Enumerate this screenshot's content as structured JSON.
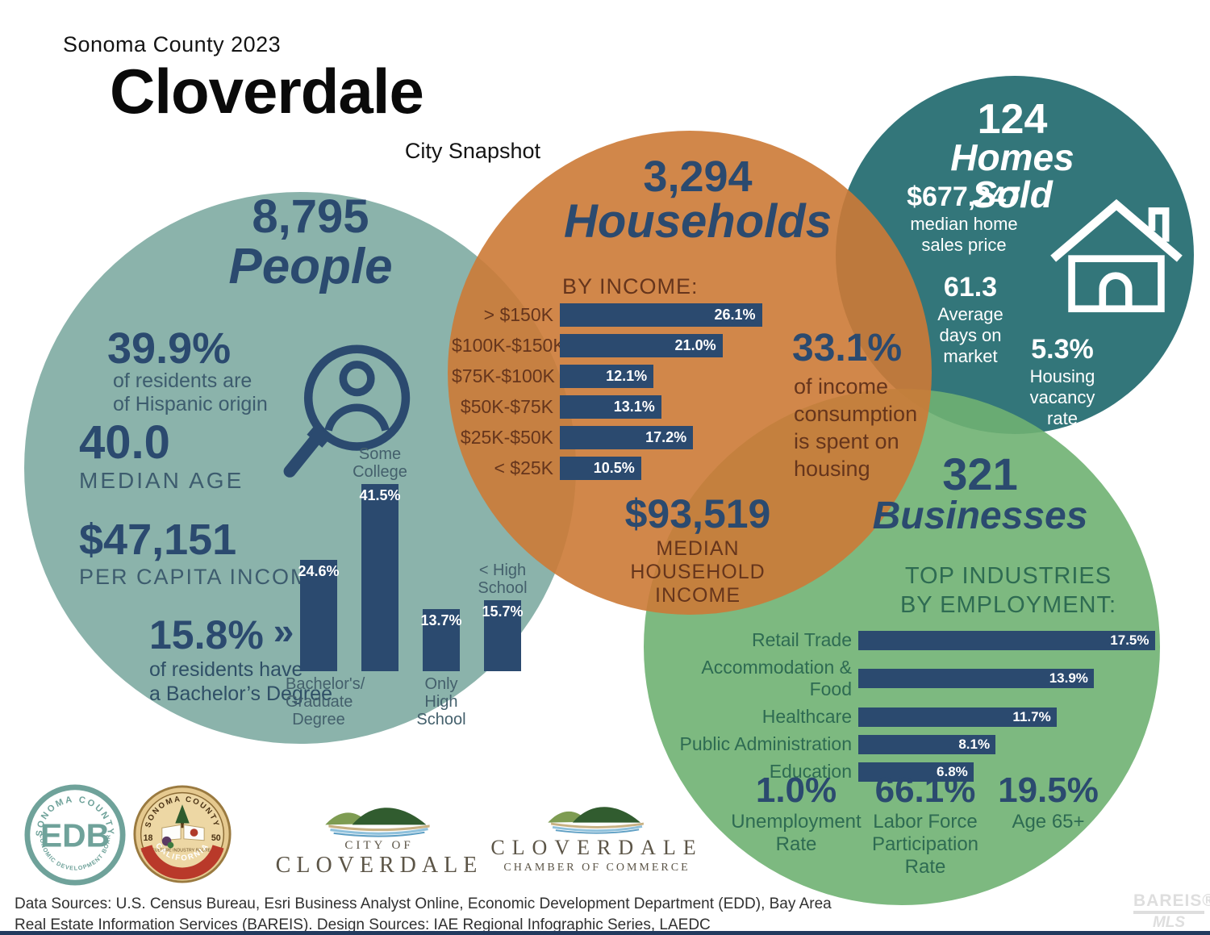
{
  "header": {
    "kicker": "Sonoma County 2023",
    "title": "Cloverdale",
    "subtitle": "City Snapshot"
  },
  "colors": {
    "people_circle": "#8BB3AB",
    "households_circle": "#CC7A36",
    "homes_circle": "#33767A",
    "businesses_circle": "#6FB172",
    "navy": "#2B4A6F",
    "rust_text": "#66351C",
    "green_text": "#2E6B52"
  },
  "people": {
    "count": "8,795",
    "label": "People",
    "hispanic_pct": "39.9%",
    "hispanic_desc": "of residents are\nof Hispanic origin",
    "median_age": "40.0",
    "median_age_label": "MEDIAN AGE",
    "per_capita": "$47,151",
    "per_capita_label": "PER CAPITA INCOME",
    "bachelor_pct": "15.8%",
    "bachelor_arrow": "»",
    "bachelor_desc": "of residents have\na Bachelor’s Degree"
  },
  "households": {
    "count": "3,294",
    "label": "Households",
    "by_income_title": "BY INCOME:",
    "housing_pct": "33.1%",
    "housing_desc": "of income\nconsumption\nis spent on\nhousing",
    "median_income": "$93,519",
    "median_income_label": "MEDIAN\nHOUSEHOLD\nINCOME"
  },
  "homes": {
    "count": "124",
    "label": "Homes Sold",
    "price": "$677,247",
    "price_label": "median home\nsales price",
    "days": "61.3",
    "days_label": "Average\ndays on\nmarket",
    "vacancy": "5.3%",
    "vacancy_label": "Housing\nvacancy\nrate"
  },
  "businesses": {
    "count": "321",
    "label": "Businesses",
    "industries_title": "TOP INDUSTRIES\nBY EMPLOYMENT:",
    "unemployment": "1.0%",
    "unemployment_label": "Unemployment\nRate",
    "labor": "66.1%",
    "labor_label": "Labor Force\nParticipation\nRate",
    "age65": "19.5%",
    "age65_label": "Age 65+"
  },
  "chart_data": [
    {
      "id": "education",
      "type": "bar",
      "orientation": "vertical",
      "context": "educational attainment of residents",
      "categories": [
        "Bachelor's/ Graduate Degree",
        "Some College",
        "Only High School",
        "< High School"
      ],
      "values": [
        24.6,
        41.5,
        13.7,
        15.7
      ],
      "label_position": [
        "below",
        "above",
        "below",
        "above"
      ],
      "unit": "%"
    },
    {
      "id": "income",
      "type": "bar",
      "orientation": "horizontal",
      "title": "BY INCOME:",
      "context": "households by income bracket",
      "categories": [
        "> $150K",
        "$100K-$150K",
        "$75K-$100K",
        "$50K-$75K",
        "$25K-$50K",
        "< $25K"
      ],
      "values": [
        26.1,
        21.0,
        12.1,
        13.1,
        17.2,
        10.5
      ],
      "unit": "%"
    },
    {
      "id": "industries",
      "type": "bar",
      "orientation": "horizontal",
      "title": "TOP INDUSTRIES BY EMPLOYMENT:",
      "context": "top industries by employment",
      "categories": [
        "Retail Trade",
        "Accommodation & Food",
        "Healthcare",
        "Public Administration",
        "Education"
      ],
      "values": [
        17.5,
        13.9,
        11.7,
        8.1,
        6.8
      ],
      "unit": "%"
    }
  ],
  "logos": {
    "edb_top": "SONOMA COUNTY",
    "edb_center": "EDB",
    "edb_bottom": "ECONOMIC DEVELOPMENT BOARD",
    "seal_top": "SONOMA COUNTY",
    "seal_year_left": "18",
    "seal_year_right": "50",
    "seal_center": "AGRICULTURE INDUSTRY RECREATION",
    "seal_bottom": "CALIFORNIA",
    "city_kicker": "CITY OF",
    "city_name": "CLOVERDALE",
    "chamber_name": "CLOVERDALE",
    "chamber_sub": "CHAMBER OF COMMERCE",
    "bareis_line1": "BAREIS®",
    "bareis_line2": "MLS"
  },
  "footer": {
    "sources": "Data Sources: U.S. Census Bureau, Esri Business Analyst Online, Economic Development Department (EDD), Bay Area\nReal Estate Information Services (BAREIS). Design Sources: IAE Regional Infographic Series, LAEDC"
  }
}
